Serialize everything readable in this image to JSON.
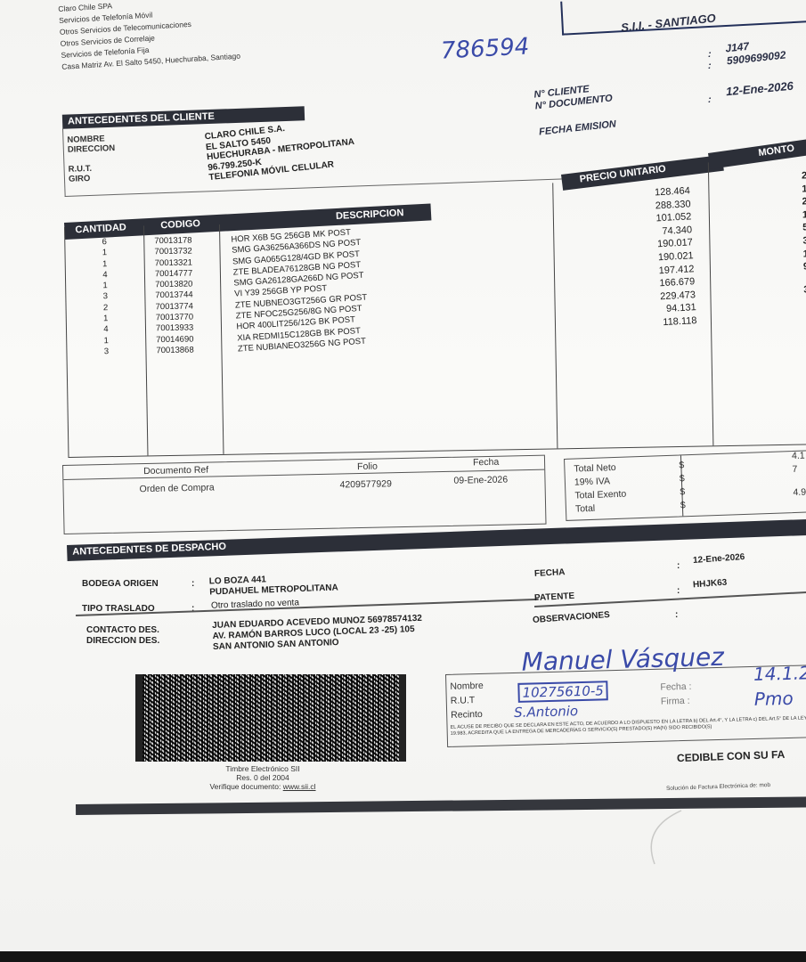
{
  "issuer": {
    "lines": [
      "Claro Chile SPA",
      "Servicios de Telefonía Móvil",
      "Otros Servicios de Telecomunicaciones",
      "Otros Servicios de Correlaje",
      "Servicios de Telefonía Fija",
      "Casa Matriz Av. El Salto 5450, Huechuraba, Santiago"
    ]
  },
  "sii_office": "S.I.I. - SANTIAGO",
  "handwritten_number": "786594",
  "document_meta": {
    "cliente_label": "N° CLIENTE",
    "documento_label": "N° DOCUMENTO",
    "fecha_label": "FECHA EMISION",
    "cliente_value": "J147",
    "documento_value": "5909699092",
    "fecha_value": "12-Ene-2026",
    "colon": ":"
  },
  "client": {
    "title": "ANTECEDENTES DEL CLIENTE",
    "fields": [
      {
        "label": "NOMBRE",
        "value": "CLARO CHILE S.A."
      },
      {
        "label": "DIRECCION",
        "value": "EL SALTO 5450"
      },
      {
        "label": "",
        "value": "HUECHURABA - METROPOLITANA"
      },
      {
        "label": "R.U.T.",
        "value": "96.799.250-K"
      },
      {
        "label": "GIRO",
        "value": "TELEFONIA MÓVIL CELULAR"
      }
    ]
  },
  "items_table": {
    "headers": {
      "cantidad": "CANTIDAD",
      "codigo": "CODIGO",
      "descripcion": "DESCRIPCION",
      "precio": "PRECIO UNITARIO",
      "monto": "MONTO"
    },
    "rows": [
      {
        "cantidad": "6",
        "codigo": "70013178",
        "descripcion": "HOR X6B 5G 256GB MK POST"
      },
      {
        "cantidad": "1",
        "codigo": "70013732",
        "descripcion": "SMG GA36256A366DS NG POST"
      },
      {
        "cantidad": "1",
        "codigo": "70013321",
        "descripcion": "SMG GA065G128/4GD BK POST"
      },
      {
        "cantidad": "4",
        "codigo": "70014777",
        "descripcion": "ZTE BLADEA76128GB NG POST"
      },
      {
        "cantidad": "1",
        "codigo": "70013820",
        "descripcion": "SMG GA26128GA266D NG POST"
      },
      {
        "cantidad": "3",
        "codigo": "70013744",
        "descripcion": "VI Y39 256GB YP POST"
      },
      {
        "cantidad": "2",
        "codigo": "70013774",
        "descripcion": "ZTE NUBNEO3GT256G GR POST"
      },
      {
        "cantidad": "1",
        "codigo": "70013770",
        "descripcion": "ZTE NFOC25G256/8G NG POST"
      },
      {
        "cantidad": "4",
        "codigo": "70013933",
        "descripcion": "HOR 400LIT256/12G BK POST"
      },
      {
        "cantidad": "1",
        "codigo": "70014690",
        "descripcion": "XIA REDMI15C128GB BK POST"
      },
      {
        "cantidad": "3",
        "codigo": "70013868",
        "descripcion": "ZTE NUBIANEO3256G NG POST"
      }
    ],
    "precios": [
      "128.464",
      "288.330",
      "101.052",
      "74.340",
      "190.017",
      "190.021",
      "197.412",
      "166.679",
      "229.473",
      "94.131",
      "118.118"
    ],
    "montos_visible": [
      "2",
      "1",
      "2",
      "1",
      "5",
      "3",
      "1",
      "9",
      "",
      "3"
    ]
  },
  "reference": {
    "headers": {
      "doc": "Documento Ref",
      "folio": "Folio",
      "fecha": "Fecha"
    },
    "row": {
      "doc": "Orden de Compra",
      "folio": "4209577929",
      "fecha": "09-Ene-2026"
    }
  },
  "totals": {
    "rows": [
      {
        "label": "Total Neto",
        "currency": "$",
        "value": "4.1"
      },
      {
        "label": "19% IVA",
        "currency": "$",
        "value": "7"
      },
      {
        "label": "Total Exento",
        "currency": "$",
        "value": ""
      },
      {
        "label": "Total",
        "currency": "$",
        "value": "4.9"
      }
    ]
  },
  "dispatch": {
    "title": "ANTECEDENTES DE DESPACHO",
    "bodega_label": "BODEGA ORIGEN",
    "bodega_1": "LO BOZA 441",
    "bodega_2": "PUDAHUEL  METROPOLITANA",
    "tipo_label": "TIPO TRASLADO",
    "tipo_value": "Otro traslado no venta",
    "contacto_label": "CONTACTO DES.",
    "contacto_value": "JUAN EDUARDO ACEVEDO MUNOZ 56978574132",
    "direccion_label": "DIRECCION DES.",
    "direccion_1": "AV. RAMÓN BARROS LUCO (LOCAL 23 -25) 105",
    "direccion_2": "SAN ANTONIO  SAN ANTONIO",
    "fecha_label": "FECHA",
    "fecha_value": "12-Ene-2026",
    "patente_label": "PATENTE",
    "patente_value": "HHJK63",
    "observaciones_label": "OBSERVACIONES",
    "colon": ":"
  },
  "timbre": {
    "line1": "Timbre Electrónico SII",
    "line2": "Res. 0 del 2004",
    "line3_prefix": "Verifique documento: ",
    "line3_link": "www.sii.cl"
  },
  "receipt": {
    "nombre_label": "Nombre",
    "rut_label": "R.U.T",
    "recinto_label": "Recinto",
    "fecha_label": "Fecha :",
    "firma_label": "Firma :",
    "nombre_hand": "Manuel Vásquez",
    "rut_hand": "10275610-5",
    "recinto_hand": "S.Antonio",
    "fecha_hand": "14.1.2",
    "firma_hand": "Pmo",
    "disclaimer": "EL ACUSE DE RECIBO QUE SE DECLARA EN ESTE ACTO, DE ACUERDO A LO DISPUESTO EN LA LETRA b) DEL Art.4°, Y LA LETRA c) DEL Art.5° DE LA LEY 19.983, ACREDITA QUE LA ENTREGA DE MERCADERÍAS O SERVICIO(S) PRESTADO(S) HA(N) SIDO RECIBIDO(S)",
    "cedible": "CEDIBLE CON SU FA"
  },
  "solution_footer": "Solución de Factura Electrónica de: mob"
}
